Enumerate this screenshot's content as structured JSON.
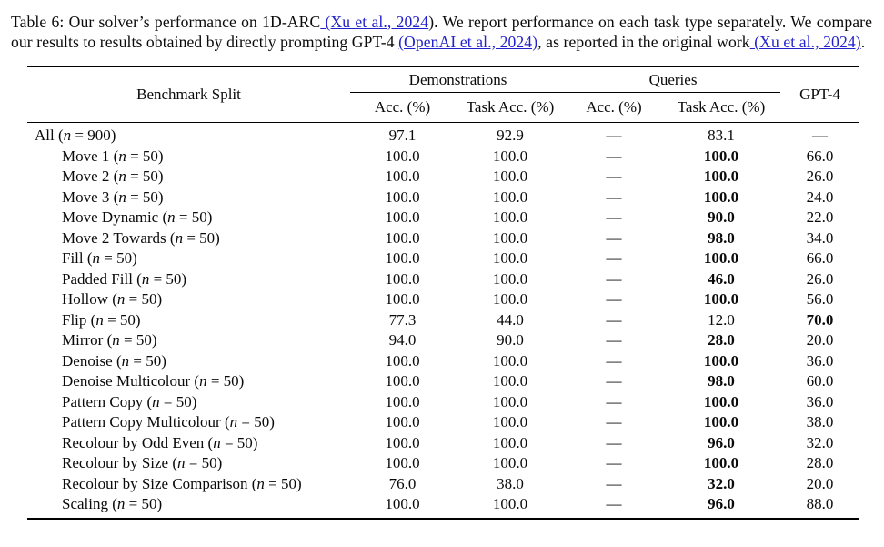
{
  "page": {
    "background": "#ffffff",
    "text_color": "#0a0a0a",
    "link_color": "#2222cc"
  },
  "caption": {
    "segments": [
      {
        "text": "Table 6: Our solver’s performance on 1D-ARC",
        "link": false
      },
      {
        "text": " (Xu et al., 2024",
        "link": true
      },
      {
        "text": "). We report performance on each task type separately. We compare our results to results obtained by directly prompting GPT-4 ",
        "link": false
      },
      {
        "text": "(OpenAI et al., 2024)",
        "link": true
      },
      {
        "text": ", as reported in the original work",
        "link": false
      },
      {
        "text": " (Xu et al., 2024)",
        "link": true
      },
      {
        "text": ".",
        "link": false
      }
    ]
  },
  "table": {
    "n_symbol": "n",
    "header": {
      "benchmark_split": "Benchmark Split",
      "groups": [
        {
          "label": "Demonstrations",
          "subcols": [
            "Acc. (%)",
            "Task Acc. (%)"
          ]
        },
        {
          "label": "Queries",
          "subcols": [
            "Acc. (%)",
            "Task Acc. (%)"
          ]
        }
      ],
      "gpt4": "GPT-4"
    },
    "rows": [
      {
        "task": "All",
        "n": "900",
        "indent": false,
        "dem_acc": "97.1",
        "dem_task_acc": "92.9",
        "q_acc": "—",
        "q_task_acc": "83.1",
        "q_task_bold": false,
        "gpt4": "—",
        "gpt4_bold": false
      },
      {
        "task": "Move 1",
        "n": "50",
        "indent": true,
        "dem_acc": "100.0",
        "dem_task_acc": "100.0",
        "q_acc": "—",
        "q_task_acc": "100.0",
        "q_task_bold": true,
        "gpt4": "66.0",
        "gpt4_bold": false
      },
      {
        "task": "Move 2",
        "n": "50",
        "indent": true,
        "dem_acc": "100.0",
        "dem_task_acc": "100.0",
        "q_acc": "—",
        "q_task_acc": "100.0",
        "q_task_bold": true,
        "gpt4": "26.0",
        "gpt4_bold": false
      },
      {
        "task": "Move 3",
        "n": "50",
        "indent": true,
        "dem_acc": "100.0",
        "dem_task_acc": "100.0",
        "q_acc": "—",
        "q_task_acc": "100.0",
        "q_task_bold": true,
        "gpt4": "24.0",
        "gpt4_bold": false
      },
      {
        "task": "Move Dynamic",
        "n": "50",
        "indent": true,
        "dem_acc": "100.0",
        "dem_task_acc": "100.0",
        "q_acc": "—",
        "q_task_acc": "90.0",
        "q_task_bold": true,
        "gpt4": "22.0",
        "gpt4_bold": false
      },
      {
        "task": "Move 2 Towards",
        "n": "50",
        "indent": true,
        "dem_acc": "100.0",
        "dem_task_acc": "100.0",
        "q_acc": "—",
        "q_task_acc": "98.0",
        "q_task_bold": true,
        "gpt4": "34.0",
        "gpt4_bold": false
      },
      {
        "task": "Fill",
        "n": "50",
        "indent": true,
        "dem_acc": "100.0",
        "dem_task_acc": "100.0",
        "q_acc": "—",
        "q_task_acc": "100.0",
        "q_task_bold": true,
        "gpt4": "66.0",
        "gpt4_bold": false
      },
      {
        "task": "Padded Fill",
        "n": "50",
        "indent": true,
        "dem_acc": "100.0",
        "dem_task_acc": "100.0",
        "q_acc": "—",
        "q_task_acc": "46.0",
        "q_task_bold": true,
        "gpt4": "26.0",
        "gpt4_bold": false
      },
      {
        "task": "Hollow",
        "n": "50",
        "indent": true,
        "dem_acc": "100.0",
        "dem_task_acc": "100.0",
        "q_acc": "—",
        "q_task_acc": "100.0",
        "q_task_bold": true,
        "gpt4": "56.0",
        "gpt4_bold": false
      },
      {
        "task": "Flip",
        "n": "50",
        "indent": true,
        "dem_acc": "77.3",
        "dem_task_acc": "44.0",
        "q_acc": "—",
        "q_task_acc": "12.0",
        "q_task_bold": false,
        "gpt4": "70.0",
        "gpt4_bold": true
      },
      {
        "task": "Mirror",
        "n": "50",
        "indent": true,
        "dem_acc": "94.0",
        "dem_task_acc": "90.0",
        "q_acc": "—",
        "q_task_acc": "28.0",
        "q_task_bold": true,
        "gpt4": "20.0",
        "gpt4_bold": false
      },
      {
        "task": "Denoise",
        "n": "50",
        "indent": true,
        "dem_acc": "100.0",
        "dem_task_acc": "100.0",
        "q_acc": "—",
        "q_task_acc": "100.0",
        "q_task_bold": true,
        "gpt4": "36.0",
        "gpt4_bold": false
      },
      {
        "task": "Denoise Multicolour",
        "n": "50",
        "indent": true,
        "dem_acc": "100.0",
        "dem_task_acc": "100.0",
        "q_acc": "—",
        "q_task_acc": "98.0",
        "q_task_bold": true,
        "gpt4": "60.0",
        "gpt4_bold": false
      },
      {
        "task": "Pattern Copy",
        "n": "50",
        "indent": true,
        "dem_acc": "100.0",
        "dem_task_acc": "100.0",
        "q_acc": "—",
        "q_task_acc": "100.0",
        "q_task_bold": true,
        "gpt4": "36.0",
        "gpt4_bold": false
      },
      {
        "task": "Pattern Copy Multicolour",
        "n": "50",
        "indent": true,
        "dem_acc": "100.0",
        "dem_task_acc": "100.0",
        "q_acc": "—",
        "q_task_acc": "100.0",
        "q_task_bold": true,
        "gpt4": "38.0",
        "gpt4_bold": false
      },
      {
        "task": "Recolour by Odd Even",
        "n": "50",
        "indent": true,
        "dem_acc": "100.0",
        "dem_task_acc": "100.0",
        "q_acc": "—",
        "q_task_acc": "96.0",
        "q_task_bold": true,
        "gpt4": "32.0",
        "gpt4_bold": false
      },
      {
        "task": "Recolour by Size",
        "n": "50",
        "indent": true,
        "dem_acc": "100.0",
        "dem_task_acc": "100.0",
        "q_acc": "—",
        "q_task_acc": "100.0",
        "q_task_bold": true,
        "gpt4": "28.0",
        "gpt4_bold": false
      },
      {
        "task": "Recolour by Size Comparison",
        "n": "50",
        "indent": true,
        "dem_acc": "76.0",
        "dem_task_acc": "38.0",
        "q_acc": "—",
        "q_task_acc": "32.0",
        "q_task_bold": true,
        "gpt4": "20.0",
        "gpt4_bold": false
      },
      {
        "task": "Scaling",
        "n": "50",
        "indent": true,
        "dem_acc": "100.0",
        "dem_task_acc": "100.0",
        "q_acc": "—",
        "q_task_acc": "96.0",
        "q_task_bold": true,
        "gpt4": "88.0",
        "gpt4_bold": false
      }
    ]
  }
}
